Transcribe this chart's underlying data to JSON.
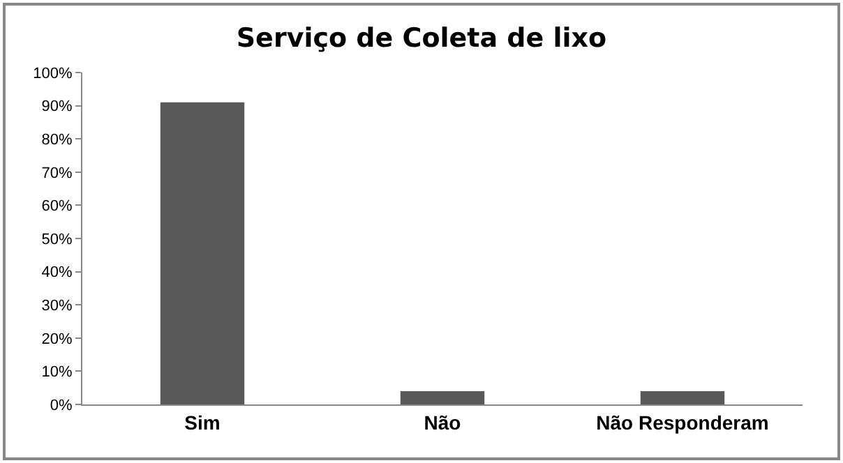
{
  "chart_data": {
    "type": "bar",
    "title": "Serviço de Coleta de lixo",
    "categories": [
      "Sim",
      "Não",
      "Não Responderam"
    ],
    "values": [
      91,
      4,
      4
    ],
    "color": "#595959",
    "ylim": [
      0,
      100
    ],
    "yticks": [
      {
        "value": 0,
        "label": "0%"
      },
      {
        "value": 10,
        "label": "10%"
      },
      {
        "value": 20,
        "label": "20%"
      },
      {
        "value": 30,
        "label": "30%"
      },
      {
        "value": 40,
        "label": "40%"
      },
      {
        "value": 50,
        "label": "50%"
      },
      {
        "value": 60,
        "label": "60%"
      },
      {
        "value": 70,
        "label": "70%"
      },
      {
        "value": 80,
        "label": "80%"
      },
      {
        "value": 90,
        "label": "90%"
      },
      {
        "value": 100,
        "label": "100%"
      }
    ],
    "grid": false
  }
}
